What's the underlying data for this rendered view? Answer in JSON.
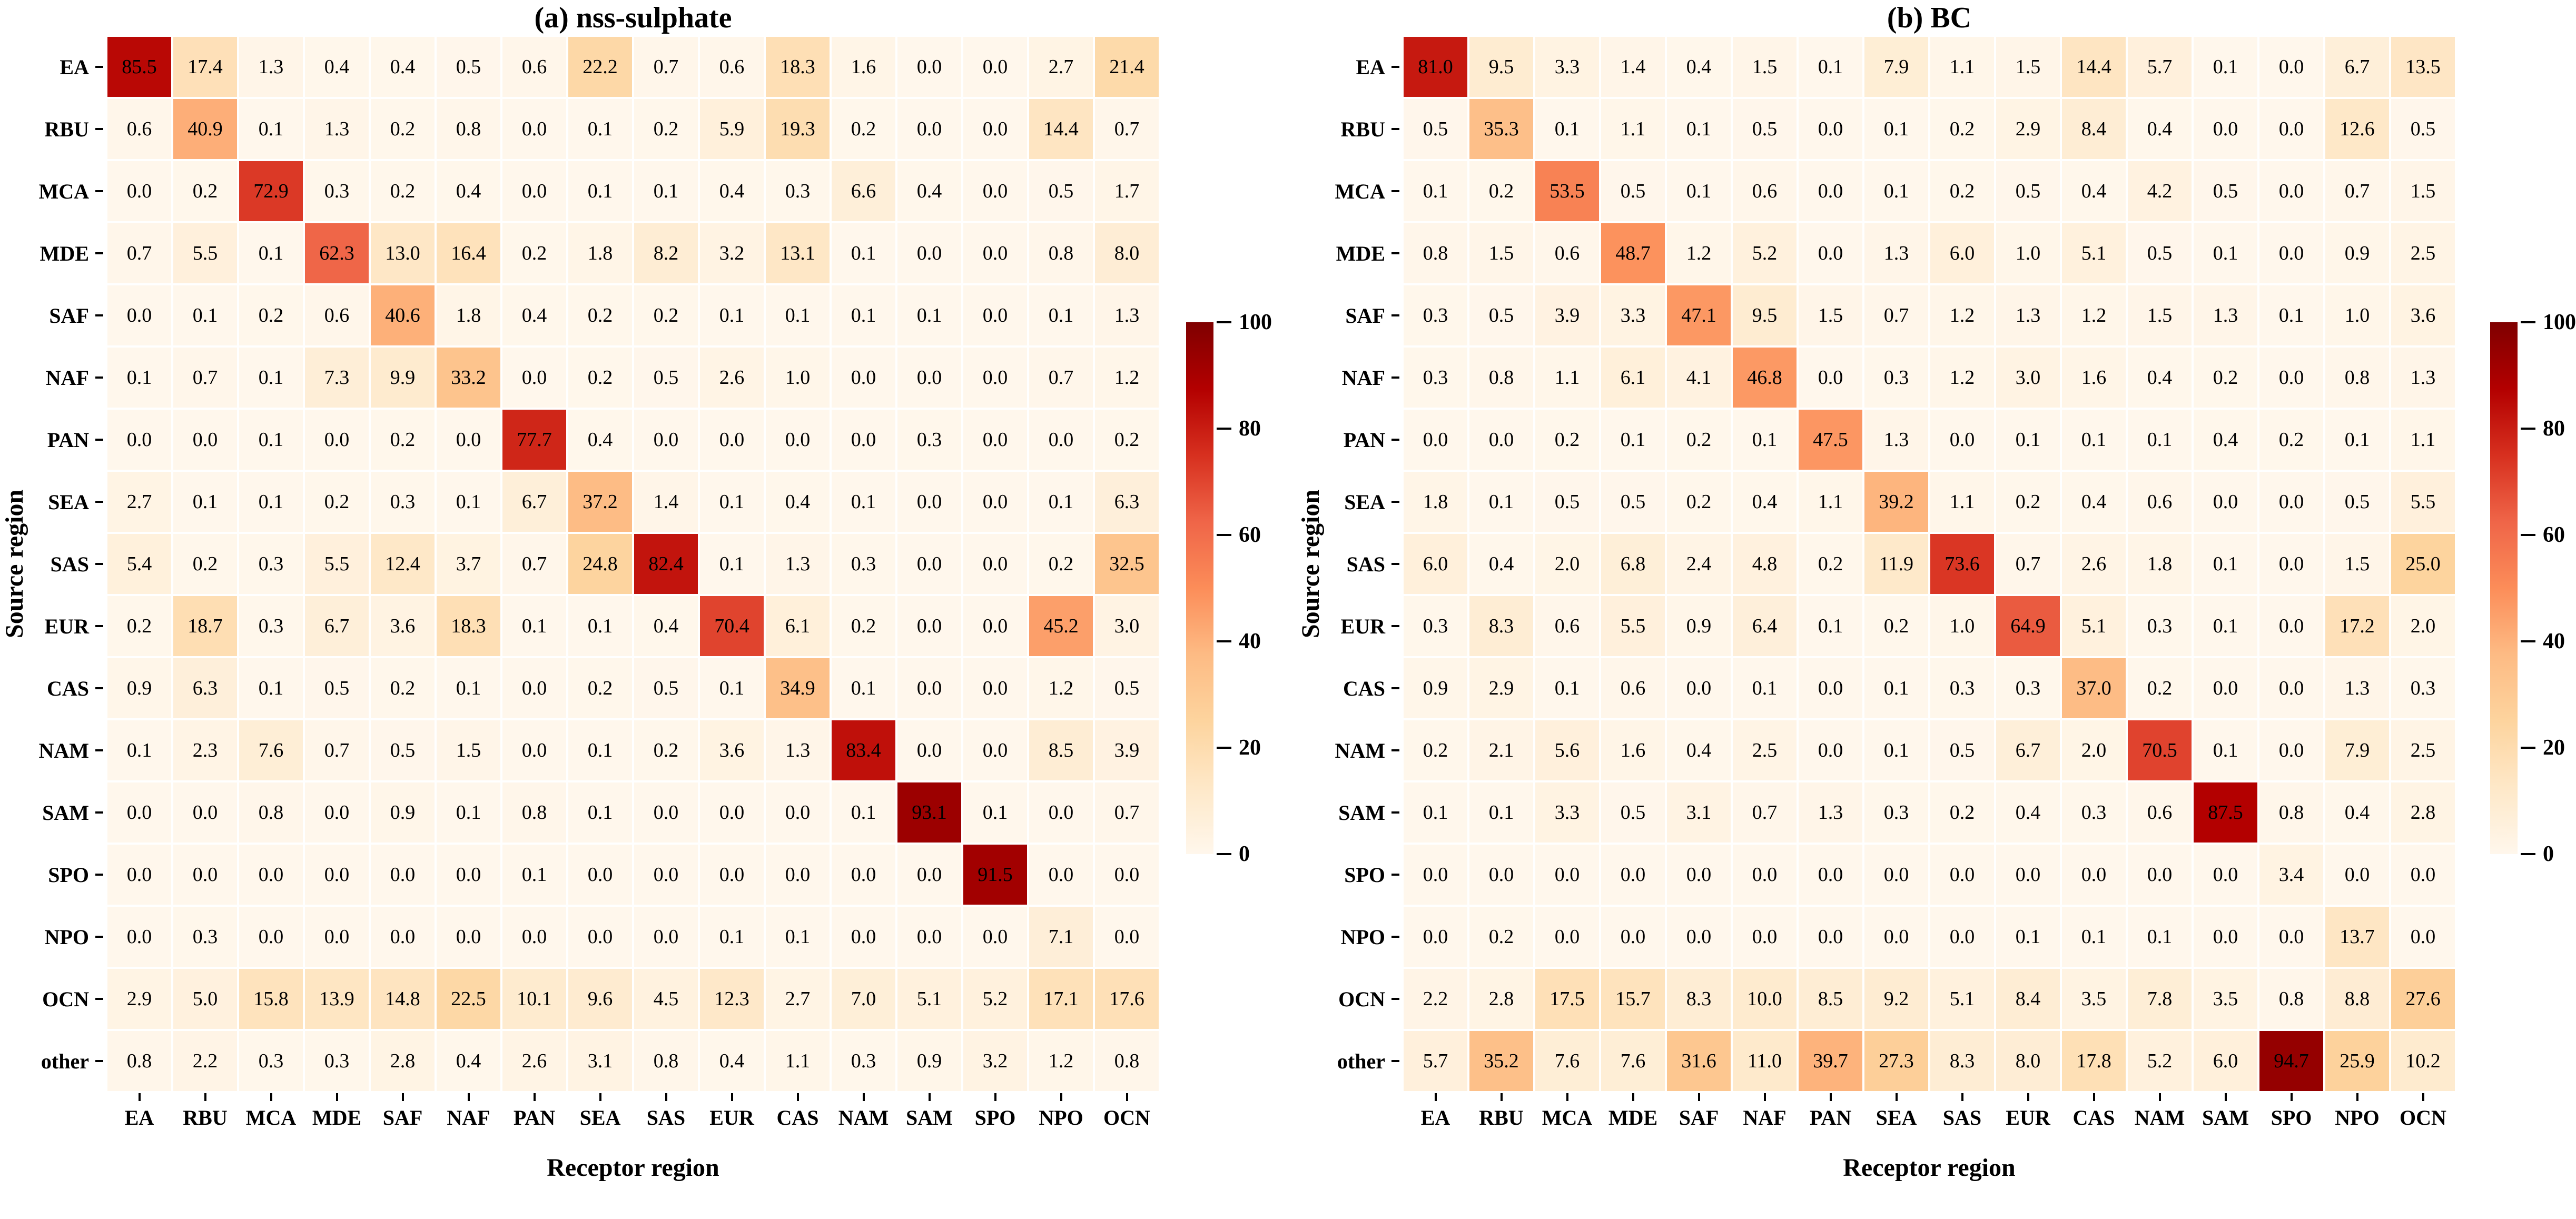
{
  "colors": {
    "background": "#ffffff",
    "text": "#000000",
    "max_color": "#7f0000",
    "min_color": "#fff7ec"
  },
  "colormap": {
    "name": "OrRd",
    "stops": [
      [
        0.0,
        "#fff7ec"
      ],
      [
        0.125,
        "#fee8c8"
      ],
      [
        0.25,
        "#fdd49e"
      ],
      [
        0.375,
        "#fdbb84"
      ],
      [
        0.5,
        "#fc8d59"
      ],
      [
        0.625,
        "#ef6548"
      ],
      [
        0.75,
        "#d7301f"
      ],
      [
        0.875,
        "#b30000"
      ],
      [
        1.0,
        "#7f0000"
      ]
    ]
  },
  "colorbar": {
    "min": 0,
    "max": 100,
    "ticks": [
      0,
      20,
      40,
      60,
      80,
      100
    ]
  },
  "chart_data": [
    {
      "type": "heatmap",
      "title": "(a) nss-sulphate",
      "xlabel": "Receptor region",
      "ylabel": "Source region",
      "rows": [
        "EA",
        "RBU",
        "MCA",
        "MDE",
        "SAF",
        "NAF",
        "PAN",
        "SEA",
        "SAS",
        "EUR",
        "CAS",
        "NAM",
        "SAM",
        "SPO",
        "NPO",
        "OCN",
        "other"
      ],
      "cols": [
        "EA",
        "RBU",
        "MCA",
        "MDE",
        "SAF",
        "NAF",
        "PAN",
        "SEA",
        "SAS",
        "EUR",
        "CAS",
        "NAM",
        "SAM",
        "SPO",
        "NPO",
        "OCN"
      ],
      "value_range": [
        0,
        100
      ],
      "matrix": [
        [
          85.5,
          17.4,
          1.3,
          0.4,
          0.4,
          0.5,
          0.6,
          22.2,
          0.7,
          0.6,
          18.3,
          1.6,
          0.0,
          0.0,
          2.7,
          21.4
        ],
        [
          0.6,
          40.9,
          0.1,
          1.3,
          0.2,
          0.8,
          0.0,
          0.1,
          0.2,
          5.9,
          19.3,
          0.2,
          0.0,
          0.0,
          14.4,
          0.7
        ],
        [
          0.0,
          0.2,
          72.9,
          0.3,
          0.2,
          0.4,
          0.0,
          0.1,
          0.1,
          0.4,
          0.3,
          6.6,
          0.4,
          0.0,
          0.5,
          1.7
        ],
        [
          0.7,
          5.5,
          0.1,
          62.3,
          13.0,
          16.4,
          0.2,
          1.8,
          8.2,
          3.2,
          13.1,
          0.1,
          0.0,
          0.0,
          0.8,
          8.0
        ],
        [
          0.0,
          0.1,
          0.2,
          0.6,
          40.6,
          1.8,
          0.4,
          0.2,
          0.2,
          0.1,
          0.1,
          0.1,
          0.1,
          0.0,
          0.1,
          1.3
        ],
        [
          0.1,
          0.7,
          0.1,
          7.3,
          9.9,
          33.2,
          0.0,
          0.2,
          0.5,
          2.6,
          1.0,
          0.0,
          0.0,
          0.0,
          0.7,
          1.2
        ],
        [
          0.0,
          0.0,
          0.1,
          0.0,
          0.2,
          0.0,
          77.7,
          0.4,
          0.0,
          0.0,
          0.0,
          0.0,
          0.3,
          0.0,
          0.0,
          0.2
        ],
        [
          2.7,
          0.1,
          0.1,
          0.2,
          0.3,
          0.1,
          6.7,
          37.2,
          1.4,
          0.1,
          0.4,
          0.1,
          0.0,
          0.0,
          0.1,
          6.3
        ],
        [
          5.4,
          0.2,
          0.3,
          5.5,
          12.4,
          3.7,
          0.7,
          24.8,
          82.4,
          0.1,
          1.3,
          0.3,
          0.0,
          0.0,
          0.2,
          32.5
        ],
        [
          0.2,
          18.7,
          0.3,
          6.7,
          3.6,
          18.3,
          0.1,
          0.1,
          0.4,
          70.4,
          6.1,
          0.2,
          0.0,
          0.0,
          45.2,
          3.0
        ],
        [
          0.9,
          6.3,
          0.1,
          0.5,
          0.2,
          0.1,
          0.0,
          0.2,
          0.5,
          0.1,
          34.9,
          0.1,
          0.0,
          0.0,
          1.2,
          0.5
        ],
        [
          0.1,
          2.3,
          7.6,
          0.7,
          0.5,
          1.5,
          0.0,
          0.1,
          0.2,
          3.6,
          1.3,
          83.4,
          0.0,
          0.0,
          8.5,
          3.9
        ],
        [
          0.0,
          0.0,
          0.8,
          0.0,
          0.9,
          0.1,
          0.8,
          0.1,
          0.0,
          0.0,
          0.0,
          0.1,
          93.1,
          0.1,
          0.0,
          0.7
        ],
        [
          0.0,
          0.0,
          0.0,
          0.0,
          0.0,
          0.0,
          0.1,
          0.0,
          0.0,
          0.0,
          0.0,
          0.0,
          0.0,
          91.5,
          0.0,
          0.0
        ],
        [
          0.0,
          0.3,
          0.0,
          0.0,
          0.0,
          0.0,
          0.0,
          0.0,
          0.0,
          0.1,
          0.1,
          0.0,
          0.0,
          0.0,
          7.1,
          0.0
        ],
        [
          2.9,
          5.0,
          15.8,
          13.9,
          14.8,
          22.5,
          10.1,
          9.6,
          4.5,
          12.3,
          2.7,
          7.0,
          5.1,
          5.2,
          17.1,
          17.6
        ],
        [
          0.8,
          2.2,
          0.3,
          0.3,
          2.8,
          0.4,
          2.6,
          3.1,
          0.8,
          0.4,
          1.1,
          0.3,
          0.9,
          3.2,
          1.2,
          0.8
        ]
      ]
    },
    {
      "type": "heatmap",
      "title": "(b) BC",
      "xlabel": "Receptor region",
      "ylabel": "Source region",
      "rows": [
        "EA",
        "RBU",
        "MCA",
        "MDE",
        "SAF",
        "NAF",
        "PAN",
        "SEA",
        "SAS",
        "EUR",
        "CAS",
        "NAM",
        "SAM",
        "SPO",
        "NPO",
        "OCN",
        "other"
      ],
      "cols": [
        "EA",
        "RBU",
        "MCA",
        "MDE",
        "SAF",
        "NAF",
        "PAN",
        "SEA",
        "SAS",
        "EUR",
        "CAS",
        "NAM",
        "SAM",
        "SPO",
        "NPO",
        "OCN"
      ],
      "value_range": [
        0,
        100
      ],
      "matrix": [
        [
          81.0,
          9.5,
          3.3,
          1.4,
          0.4,
          1.5,
          0.1,
          7.9,
          1.1,
          1.5,
          14.4,
          5.7,
          0.1,
          0.0,
          6.7,
          13.5
        ],
        [
          0.5,
          35.3,
          0.1,
          1.1,
          0.1,
          0.5,
          0.0,
          0.1,
          0.2,
          2.9,
          8.4,
          0.4,
          0.0,
          0.0,
          12.6,
          0.5
        ],
        [
          0.1,
          0.2,
          53.5,
          0.5,
          0.1,
          0.6,
          0.0,
          0.1,
          0.2,
          0.5,
          0.4,
          4.2,
          0.5,
          0.0,
          0.7,
          1.5
        ],
        [
          0.8,
          1.5,
          0.6,
          48.7,
          1.2,
          5.2,
          0.0,
          1.3,
          6.0,
          1.0,
          5.1,
          0.5,
          0.1,
          0.0,
          0.9,
          2.5
        ],
        [
          0.3,
          0.5,
          3.9,
          3.3,
          47.1,
          9.5,
          1.5,
          0.7,
          1.2,
          1.3,
          1.2,
          1.5,
          1.3,
          0.1,
          1.0,
          3.6
        ],
        [
          0.3,
          0.8,
          1.1,
          6.1,
          4.1,
          46.8,
          0.0,
          0.3,
          1.2,
          3.0,
          1.6,
          0.4,
          0.2,
          0.0,
          0.8,
          1.3
        ],
        [
          0.0,
          0.0,
          0.2,
          0.1,
          0.2,
          0.1,
          47.5,
          1.3,
          0.0,
          0.1,
          0.1,
          0.1,
          0.4,
          0.2,
          0.1,
          1.1
        ],
        [
          1.8,
          0.1,
          0.5,
          0.5,
          0.2,
          0.4,
          1.1,
          39.2,
          1.1,
          0.2,
          0.4,
          0.6,
          0.0,
          0.0,
          0.5,
          5.5
        ],
        [
          6.0,
          0.4,
          2.0,
          6.8,
          2.4,
          4.8,
          0.2,
          11.9,
          73.6,
          0.7,
          2.6,
          1.8,
          0.1,
          0.0,
          1.5,
          25.0
        ],
        [
          0.3,
          8.3,
          0.6,
          5.5,
          0.9,
          6.4,
          0.1,
          0.2,
          1.0,
          64.9,
          5.1,
          0.3,
          0.1,
          0.0,
          17.2,
          2.0
        ],
        [
          0.9,
          2.9,
          0.1,
          0.6,
          0.0,
          0.1,
          0.0,
          0.1,
          0.3,
          0.3,
          37.0,
          0.2,
          0.0,
          0.0,
          1.3,
          0.3
        ],
        [
          0.2,
          2.1,
          5.6,
          1.6,
          0.4,
          2.5,
          0.0,
          0.1,
          0.5,
          6.7,
          2.0,
          70.5,
          0.1,
          0.0,
          7.9,
          2.5
        ],
        [
          0.1,
          0.1,
          3.3,
          0.5,
          3.1,
          0.7,
          1.3,
          0.3,
          0.2,
          0.4,
          0.3,
          0.6,
          87.5,
          0.8,
          0.4,
          2.8
        ],
        [
          0.0,
          0.0,
          0.0,
          0.0,
          0.0,
          0.0,
          0.0,
          0.0,
          0.0,
          0.0,
          0.0,
          0.0,
          0.0,
          3.4,
          0.0,
          0.0
        ],
        [
          0.0,
          0.2,
          0.0,
          0.0,
          0.0,
          0.0,
          0.0,
          0.0,
          0.0,
          0.1,
          0.1,
          0.1,
          0.0,
          0.0,
          13.7,
          0.0
        ],
        [
          2.2,
          2.8,
          17.5,
          15.7,
          8.3,
          10.0,
          8.5,
          9.2,
          5.1,
          8.4,
          3.5,
          7.8,
          3.5,
          0.8,
          8.8,
          27.6
        ],
        [
          5.7,
          35.2,
          7.6,
          7.6,
          31.6,
          11.0,
          39.7,
          27.3,
          8.3,
          8.0,
          17.8,
          5.2,
          6.0,
          94.7,
          25.9,
          10.2
        ]
      ]
    }
  ]
}
